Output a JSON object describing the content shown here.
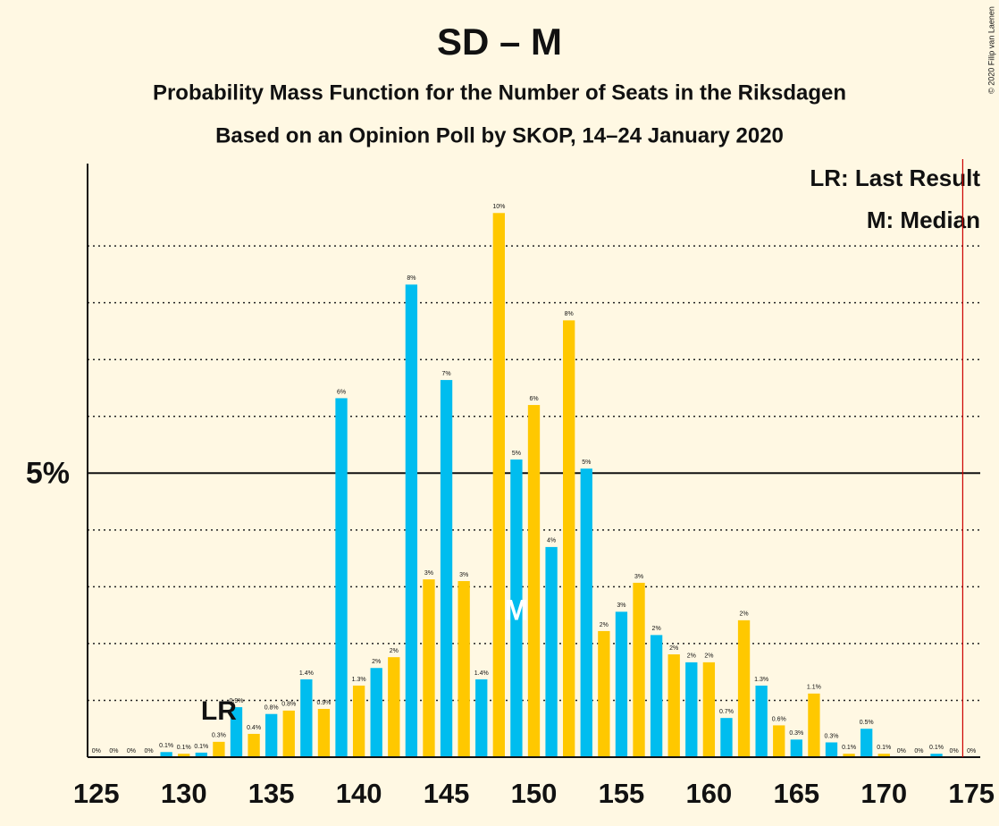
{
  "chart_data": {
    "type": "bar",
    "title": "SD – M",
    "subtitle": "Probability Mass Function for the Number of Seats in the Riksdagen",
    "subtitle2": "Based on an Opinion Poll by SKOP, 14–24 January 2020",
    "copyright": "© 2020 Filip van Laenen",
    "legend": [
      "LR: Last Result",
      "M: Median"
    ],
    "categories": [
      125,
      126,
      127,
      128,
      129,
      130,
      131,
      132,
      133,
      134,
      135,
      136,
      137,
      138,
      139,
      140,
      141,
      142,
      143,
      144,
      145,
      146,
      147,
      148,
      149,
      150,
      151,
      152,
      153,
      154,
      155,
      156,
      157,
      158,
      159,
      160,
      161,
      162,
      163,
      164,
      165,
      166,
      167,
      168,
      169,
      170,
      171,
      172,
      173,
      174,
      175
    ],
    "values": [
      0,
      0,
      0,
      0,
      0.09,
      0.06,
      0.08,
      0.27,
      0.88,
      0.41,
      0.76,
      0.82,
      1.37,
      0.85,
      6.32,
      1.26,
      1.57,
      1.76,
      8.32,
      3.13,
      6.64,
      3.1,
      1.37,
      9.58,
      5.24,
      6.2,
      3.7,
      7.69,
      5.08,
      2.22,
      2.56,
      3.07,
      2.15,
      1.81,
      1.67,
      1.67,
      0.69,
      2.41,
      1.26,
      0.56,
      0.31,
      1.12,
      0.26,
      0.06,
      0.5,
      0.06,
      0,
      0,
      0.06,
      0,
      0
    ],
    "value_labels": [
      "0%",
      "0%",
      "0%",
      "0%",
      "0.1%",
      "0.1%",
      "0.1%",
      "0.3%",
      "0.9%",
      "0.4%",
      "0.8%",
      "0.8%",
      "1.4%",
      "0.9%",
      "6%",
      "1.3%",
      "2%",
      "2%",
      "8%",
      "3%",
      "7%",
      "3%",
      "1.4%",
      "10%",
      "5%",
      "6%",
      "4%",
      "8%",
      "5%",
      "2%",
      "3%",
      "3%",
      "2%",
      "2%",
      "2%",
      "2%",
      "0.7%",
      "2%",
      "1.3%",
      "0.6%",
      "0.3%",
      "1.1%",
      "0.3%",
      "0.1%",
      "0.5%",
      "0.1%",
      "0%",
      "0%",
      "0.1%",
      "0%",
      "0%"
    ],
    "colors": [
      "#00bdef",
      "#ffc800"
    ],
    "xlim": [
      124.5,
      175.5
    ],
    "xticks": [
      125,
      130,
      135,
      140,
      145,
      150,
      155,
      160,
      165,
      170,
      175
    ],
    "ylim": [
      0,
      10.45
    ],
    "yticks": [
      {
        "value": 5,
        "label": "5%"
      }
    ],
    "minor_grid": [
      1,
      2,
      3,
      4,
      6,
      7,
      8,
      9
    ],
    "majority_line": 174.5,
    "last_result": {
      "seat": 132,
      "label": "LR"
    },
    "median": {
      "seat": 149,
      "label": "M"
    }
  }
}
